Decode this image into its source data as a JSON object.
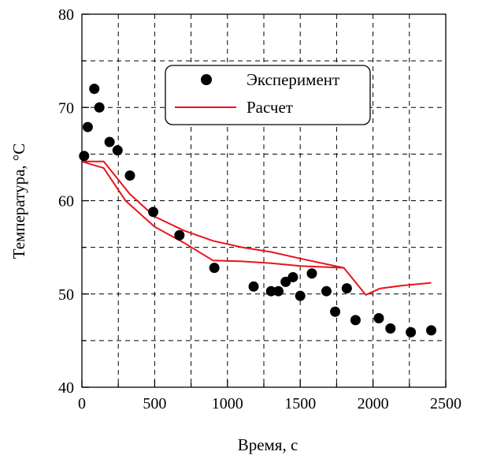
{
  "chart_data": {
    "type": "scatter",
    "xlabel": "Время, с",
    "ylabel": "Температура, °С",
    "xlim": [
      0,
      2500
    ],
    "ylim": [
      40,
      80
    ],
    "x_ticks": [
      0,
      500,
      1000,
      1500,
      2000,
      2500
    ],
    "y_ticks": [
      40,
      50,
      60,
      70,
      80
    ],
    "grid": true,
    "grid_style": "dashed",
    "legend_position": "top-center",
    "series": [
      {
        "name": "Эксперимент",
        "kind": "scatter",
        "color": "#000000",
        "points": [
          [
            15,
            64.8
          ],
          [
            40,
            67.9
          ],
          [
            85,
            72.0
          ],
          [
            120,
            70.0
          ],
          [
            190,
            66.3
          ],
          [
            245,
            65.4
          ],
          [
            330,
            62.7
          ],
          [
            490,
            58.8
          ],
          [
            670,
            56.3
          ],
          [
            910,
            52.8
          ],
          [
            1180,
            50.8
          ],
          [
            1300,
            50.3
          ],
          [
            1350,
            50.3
          ],
          [
            1400,
            51.3
          ],
          [
            1450,
            51.8
          ],
          [
            1500,
            49.8
          ],
          [
            1580,
            52.2
          ],
          [
            1680,
            50.3
          ],
          [
            1740,
            48.1
          ],
          [
            1820,
            50.6
          ],
          [
            1880,
            47.2
          ],
          [
            2040,
            47.4
          ],
          [
            2120,
            46.3
          ],
          [
            2260,
            45.9
          ],
          [
            2400,
            46.1
          ]
        ]
      },
      {
        "name": "Расчет",
        "kind": "line",
        "color": "#e8141b",
        "points": [
          [
            0,
            64.2
          ],
          [
            150,
            64.2
          ],
          [
            330,
            60.7
          ],
          [
            500,
            58.3
          ],
          [
            700,
            56.8
          ],
          [
            900,
            55.7
          ],
          [
            1100,
            55.0
          ],
          [
            1300,
            54.5
          ],
          [
            1500,
            53.8
          ],
          [
            1800,
            52.8
          ],
          [
            1500,
            53.0
          ],
          [
            1300,
            53.3
          ],
          [
            1100,
            53.5
          ],
          [
            900,
            53.6
          ],
          [
            700,
            55.5
          ],
          [
            500,
            57.2
          ],
          [
            300,
            60.0
          ],
          [
            150,
            63.5
          ],
          [
            0,
            64.2
          ]
        ],
        "tail_points": [
          [
            1800,
            52.8
          ],
          [
            1950,
            49.9
          ],
          [
            2050,
            50.6
          ],
          [
            2200,
            50.9
          ],
          [
            2400,
            51.2
          ]
        ]
      }
    ]
  }
}
